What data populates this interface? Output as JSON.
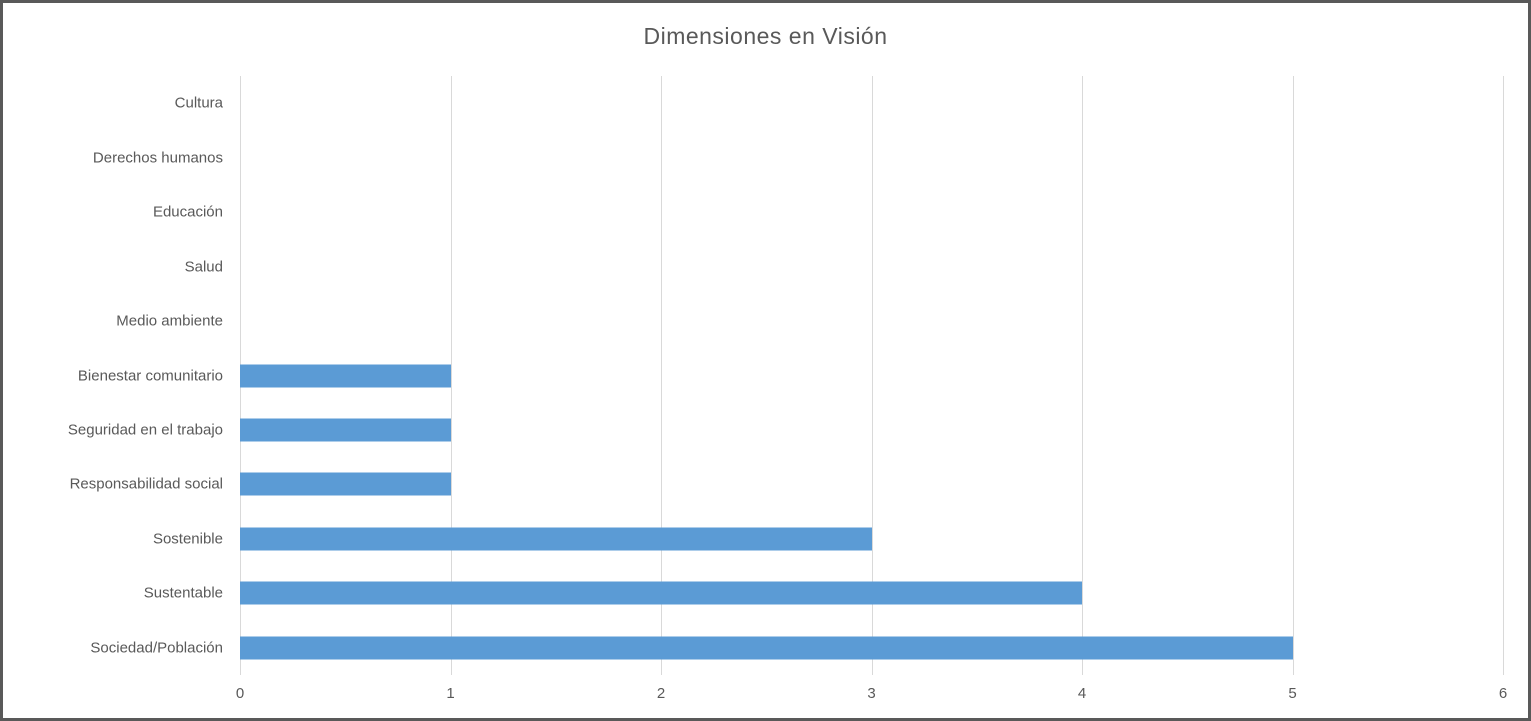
{
  "frame": {
    "background": "#FFFFFF",
    "border_color": "#595959"
  },
  "chart_data": {
    "type": "bar",
    "orientation": "horizontal",
    "title": "Dimensiones en Visión",
    "categories": [
      "Cultura",
      "Derechos humanos",
      "Educación",
      "Salud",
      "Medio ambiente",
      "Bienestar comunitario",
      "Seguridad en el trabajo",
      "Responsabilidad social",
      "Sostenible",
      "Sustentable",
      "Sociedad/Población"
    ],
    "values": [
      0,
      0,
      0,
      0,
      0,
      1,
      1,
      1,
      3,
      4,
      5
    ],
    "xlabel": "",
    "ylabel": "",
    "xlim": [
      0,
      6
    ],
    "x_ticks": [
      "0",
      "1",
      "2",
      "3",
      "4",
      "5",
      "6"
    ],
    "grid": true,
    "legend_position": "none",
    "colors": {
      "bar": "#5B9BD5",
      "gridline": "#D9D9D9",
      "text": "#595959",
      "title": "#595959"
    }
  }
}
